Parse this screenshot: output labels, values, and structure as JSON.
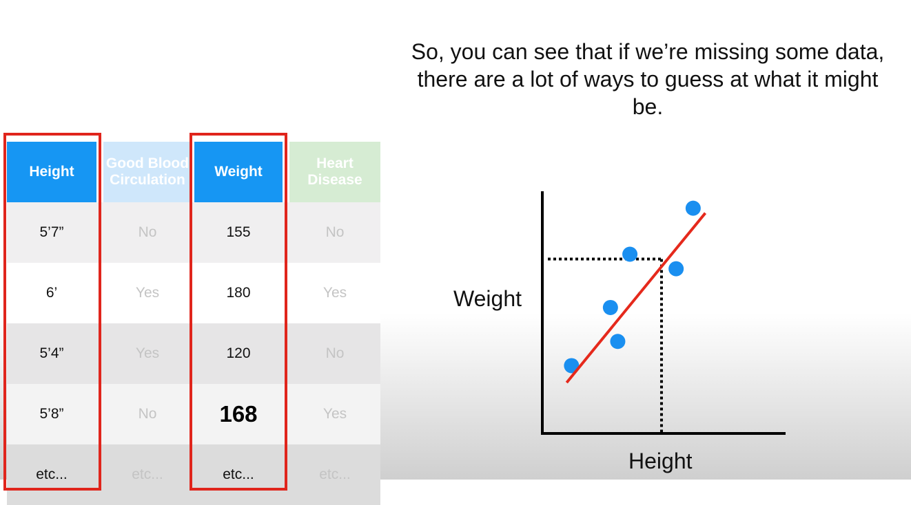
{
  "caption": "So, you can see that if we’re missing some data, there are a lot of ways to guess at what it might be.",
  "table": {
    "headers": [
      "Height",
      "Good Blood Circulation",
      "Weight",
      "Heart Disease"
    ],
    "rows": [
      [
        "5’7”",
        "No",
        "155",
        "No"
      ],
      [
        "6’",
        "Yes",
        "180",
        "Yes"
      ],
      [
        "5’4”",
        "Yes",
        "120",
        "No"
      ],
      [
        "5’8”",
        "No",
        "168",
        "Yes"
      ],
      [
        "etc...",
        "etc...",
        "etc...",
        "etc..."
      ]
    ],
    "highlighted_columns": [
      "Height",
      "Weight"
    ],
    "imputed_value": "168"
  },
  "chart_data": {
    "type": "scatter",
    "xlabel": "Height",
    "ylabel": "Weight",
    "points": [
      [
        0.12,
        0.28
      ],
      [
        0.31,
        0.38
      ],
      [
        0.28,
        0.52
      ],
      [
        0.36,
        0.74
      ],
      [
        0.55,
        0.68
      ],
      [
        0.62,
        0.93
      ]
    ],
    "trend_line": [
      [
        0.1,
        0.21
      ],
      [
        0.67,
        0.91
      ]
    ],
    "projection": {
      "x": 0.49,
      "y": 0.72
    },
    "point_color": "#1a8ff0",
    "line_color": "#e5291c"
  },
  "colors": {
    "header_blue": "#1696f3",
    "header_light_blue": "#cfe7fb",
    "header_light_green": "#d6ecd3",
    "highlight_box": "#e0251c"
  }
}
